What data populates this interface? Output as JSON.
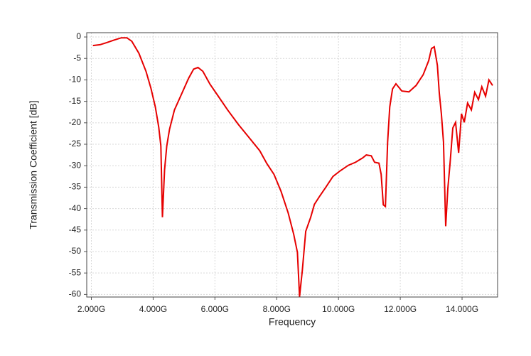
{
  "chart_data": {
    "type": "line",
    "xlabel": "Frequency",
    "ylabel": "Transmission Coefficient [dB]",
    "color": "#e60000",
    "grid": true,
    "xlim": [
      1.85,
      15.15
    ],
    "ylim": [
      -60.6,
      1
    ],
    "xticks": [
      {
        "value": 2,
        "label": "2.000G"
      },
      {
        "value": 4,
        "label": "4.000G"
      },
      {
        "value": 6,
        "label": "6.000G"
      },
      {
        "value": 8,
        "label": "8.000G"
      },
      {
        "value": 10,
        "label": "10.000G"
      },
      {
        "value": 12,
        "label": "12.000G"
      },
      {
        "value": 14,
        "label": "14.000G"
      }
    ],
    "yticks": [
      0,
      -5,
      -10,
      -15,
      -20,
      -25,
      -30,
      -35,
      -40,
      -45,
      -50,
      -55,
      -60
    ],
    "x": [
      2.05,
      2.28,
      2.5,
      2.74,
      2.97,
      3.15,
      3.31,
      3.54,
      3.77,
      3.93,
      4.07,
      4.18,
      4.25,
      4.3,
      4.37,
      4.44,
      4.53,
      4.69,
      4.92,
      5.15,
      5.31,
      5.45,
      5.61,
      5.84,
      6.07,
      6.41,
      6.76,
      7.1,
      7.45,
      7.68,
      7.91,
      8.14,
      8.37,
      8.55,
      8.67,
      8.74,
      8.83,
      8.94,
      9.1,
      9.22,
      9.4,
      9.59,
      9.82,
      10.05,
      10.32,
      10.55,
      10.78,
      10.9,
      11.06,
      11.17,
      11.31,
      11.38,
      11.45,
      11.52,
      11.59,
      11.66,
      11.75,
      11.86,
      12.05,
      12.28,
      12.51,
      12.74,
      12.92,
      13.01,
      13.1,
      13.2,
      13.26,
      13.33,
      13.4,
      13.47,
      13.54,
      13.61,
      13.7,
      13.79,
      13.89,
      13.98,
      14.07,
      14.18,
      14.3,
      14.41,
      14.53,
      14.64,
      14.76,
      14.87,
      14.99
    ],
    "values": [
      -2.0,
      -1.8,
      -1.3,
      -0.7,
      -0.2,
      -0.2,
      -1.0,
      -3.8,
      -8,
      -12,
      -16.3,
      -21,
      -25.4,
      -42,
      -31,
      -25.4,
      -21.5,
      -17,
      -13.3,
      -9.6,
      -7.5,
      -7.1,
      -8,
      -11,
      -13.4,
      -17,
      -20.4,
      -23.4,
      -26.5,
      -29.5,
      -32,
      -36,
      -41,
      -46,
      -50.2,
      -60.5,
      -54.4,
      -45.3,
      -42,
      -39,
      -37,
      -35,
      -32.5,
      -31.2,
      -29.9,
      -29.2,
      -28.2,
      -27.5,
      -27.7,
      -29.2,
      -29.4,
      -32,
      -39.1,
      -39.5,
      -24.5,
      -16.3,
      -12.1,
      -10.9,
      -12.6,
      -12.8,
      -11.3,
      -8.8,
      -5.5,
      -2.7,
      -2.3,
      -6.6,
      -12.9,
      -17.9,
      -24.5,
      -44.1,
      -35.3,
      -29.5,
      -21.2,
      -19.9,
      -27,
      -17.9,
      -19.9,
      -15.4,
      -17,
      -12.9,
      -14.6,
      -11.6,
      -13.8,
      -10,
      -11.3
    ]
  }
}
